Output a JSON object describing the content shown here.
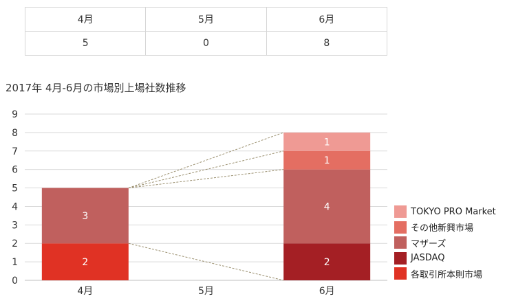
{
  "table": {
    "headers": [
      "4月",
      "5月",
      "6月"
    ],
    "values": [
      "5",
      "0",
      "8"
    ]
  },
  "chart_data": {
    "type": "bar",
    "stacked": true,
    "title": "2017年 4月-6月の市場別上場社数推移",
    "categories": [
      "4月",
      "5月",
      "6月"
    ],
    "ylim": [
      0,
      9
    ],
    "yticks": [
      0,
      1,
      2,
      3,
      4,
      5,
      6,
      7,
      8,
      9
    ],
    "grid": true,
    "legend_position": "right",
    "segments": [
      {
        "category": "4月",
        "series": "各取引所本則市場",
        "value": 2,
        "color": "#e03224"
      },
      {
        "category": "4月",
        "series": "マザーズ",
        "value": 3,
        "color": "#c0605e"
      },
      {
        "category": "6月",
        "series": "JASDAQ",
        "value": 2,
        "color": "#a41f24"
      },
      {
        "category": "6月",
        "series": "マザーズ",
        "value": 4,
        "color": "#c0605e"
      },
      {
        "category": "6月",
        "series": "その他新興市場",
        "value": 1,
        "color": "#e46e62"
      },
      {
        "category": "6月",
        "series": "TOKYO PRO Market",
        "value": 1,
        "color": "#ef9a94"
      }
    ],
    "legend": [
      {
        "label": "TOKYO PRO Market",
        "color": "#ef9a94"
      },
      {
        "label": "その他新興市場",
        "color": "#e46e62"
      },
      {
        "label": "マザーズ",
        "color": "#c0605e"
      },
      {
        "label": "JASDAQ",
        "color": "#a41f24"
      },
      {
        "label": "各取引所本則市場",
        "color": "#e03224"
      }
    ]
  }
}
